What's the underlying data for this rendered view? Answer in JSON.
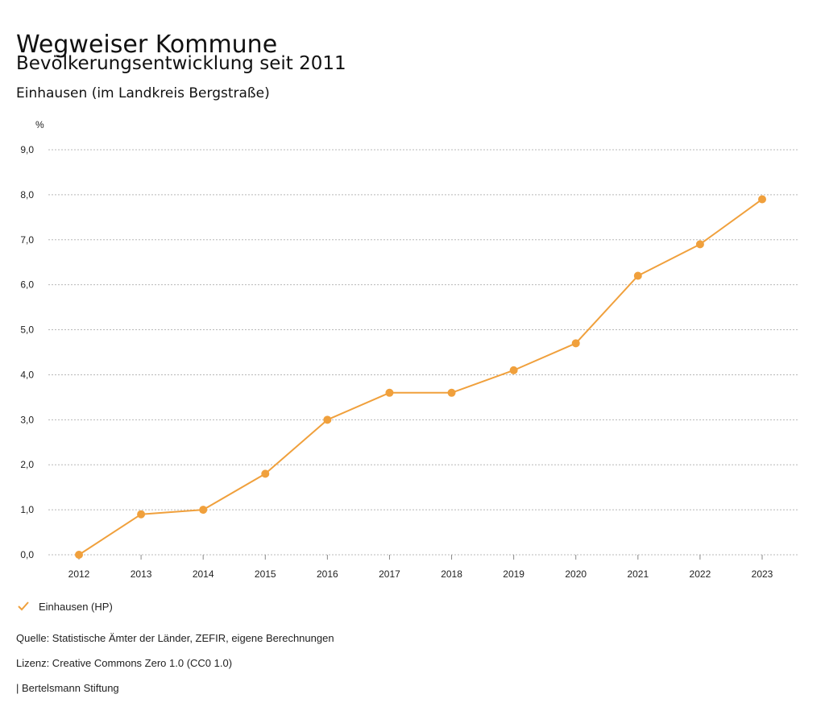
{
  "header": {
    "title": "Wegweiser Kommune",
    "subtitle": "Bevölkerungsentwicklung seit 2011",
    "region": "Einhausen (im Landkreis Bergstraße)"
  },
  "chart_data": {
    "type": "line",
    "title": "Bevölkerungsentwicklung seit 2011",
    "ylabel": "%",
    "xlabel": "",
    "ylim": [
      0,
      9
    ],
    "yticks": [
      "0,0",
      "1,0",
      "2,0",
      "3,0",
      "4,0",
      "5,0",
      "6,0",
      "7,0",
      "8,0",
      "9,0"
    ],
    "categories": [
      "2012",
      "2013",
      "2014",
      "2015",
      "2016",
      "2017",
      "2018",
      "2019",
      "2020",
      "2021",
      "2022",
      "2023"
    ],
    "series": [
      {
        "name": "Einhausen (HP)",
        "color": "#f0a03c",
        "values": [
          0.0,
          0.9,
          1.0,
          1.8,
          3.0,
          3.6,
          3.6,
          4.1,
          4.7,
          6.2,
          6.9,
          7.9
        ]
      }
    ],
    "grid": true,
    "legend_position": "bottom-left"
  },
  "legend": {
    "label": "Einhausen (HP)"
  },
  "footer": {
    "source": "Quelle: Statistische Ämter der Länder, ZEFIR, eigene Berechnungen",
    "license": "Lizenz: Creative Commons Zero 1.0 (CC0 1.0)",
    "publisher": "| Bertelsmann Stiftung"
  }
}
